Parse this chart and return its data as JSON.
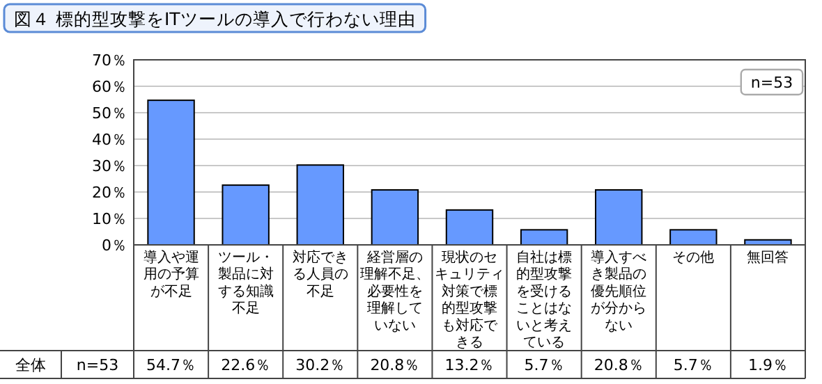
{
  "chart_data": {
    "type": "bar",
    "title": "図４ 標的型攻撃をITツールの導入で行わない理由",
    "categories": [
      "導入や運用の予算が不足",
      "ツール・製品に対する知識不足",
      "対応できる人員の不足",
      "経営層の理解不足、必要性を理解していない",
      "現状のセキュリティ対策で標的型攻撃も対応できる",
      "自社は標的型攻撃を受けることはないと考えている",
      "導入すべき製品の優先順位が分からない",
      "その他",
      "無回答"
    ],
    "values": [
      54.7,
      22.6,
      30.2,
      20.8,
      13.2,
      5.7,
      20.8,
      5.7,
      1.9
    ],
    "value_labels": [
      "54.7％",
      "22.6％",
      "30.2％",
      "20.8％",
      "13.2％",
      "5.7％",
      "20.8％",
      "5.7％",
      "1.9％"
    ],
    "color": "#6699ff",
    "ylim": [
      0,
      70
    ],
    "yticks": [
      {
        "value": 0,
        "label": "0％"
      },
      {
        "value": 10,
        "label": "10％"
      },
      {
        "value": 20,
        "label": "20％"
      },
      {
        "value": 30,
        "label": "30％"
      },
      {
        "value": 40,
        "label": "40％"
      },
      {
        "value": 50,
        "label": "50％"
      },
      {
        "value": 60,
        "label": "60％"
      },
      {
        "value": 70,
        "label": "70％"
      }
    ],
    "grid": "y",
    "annotations": [
      "n=53",
      "全体",
      "n=53"
    ]
  }
}
